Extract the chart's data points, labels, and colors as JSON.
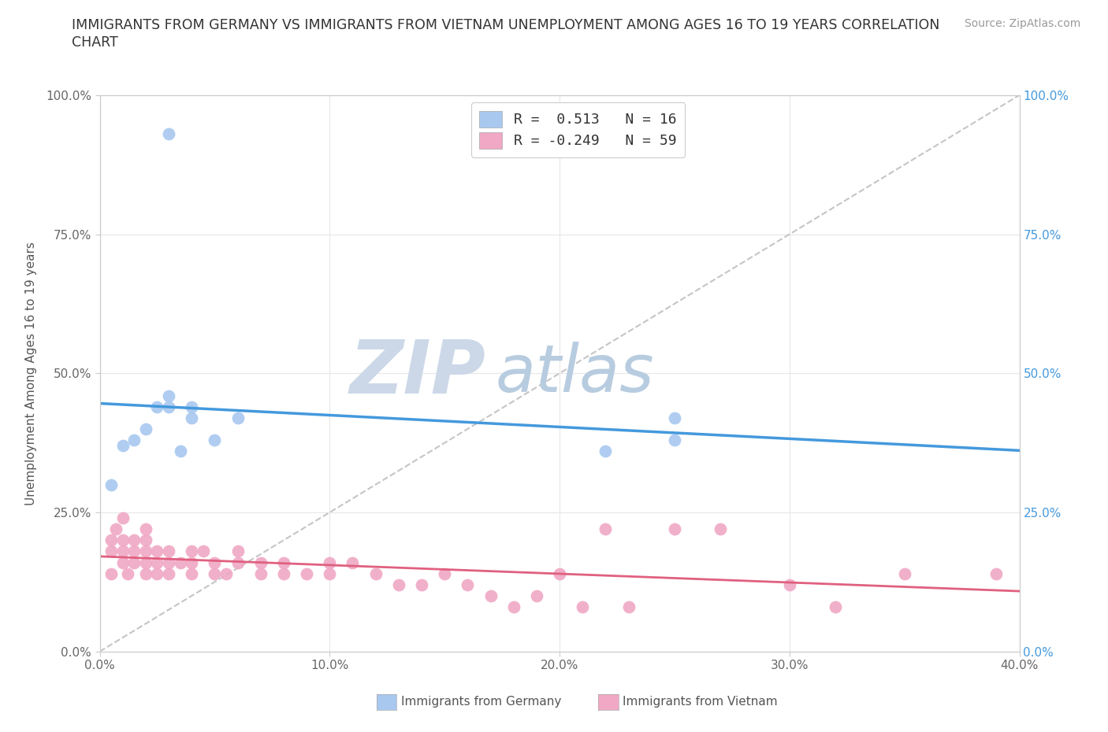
{
  "title_line1": "IMMIGRANTS FROM GERMANY VS IMMIGRANTS FROM VIETNAM UNEMPLOYMENT AMONG AGES 16 TO 19 YEARS CORRELATION",
  "title_line2": "CHART",
  "source": "Source: ZipAtlas.com",
  "ylabel": "Unemployment Among Ages 16 to 19 years",
  "xlabel_germany": "Immigrants from Germany",
  "xlabel_vietnam": "Immigrants from Vietnam",
  "xlim": [
    0.0,
    0.4
  ],
  "ylim": [
    0.0,
    1.0
  ],
  "xticks": [
    0.0,
    0.1,
    0.2,
    0.3,
    0.4
  ],
  "yticks": [
    0.0,
    0.25,
    0.5,
    0.75,
    1.0
  ],
  "ytick_labels_left": [
    "0.0%",
    "25.0%",
    "50.0%",
    "75.0%",
    "100.0%"
  ],
  "ytick_labels_right": [
    "0.0%",
    "25.0%",
    "50.0%",
    "75.0%",
    "100.0%"
  ],
  "xtick_labels": [
    "0.0%",
    "10.0%",
    "20.0%",
    "30.0%",
    "40.0%"
  ],
  "r_germany": 0.513,
  "n_germany": 16,
  "r_vietnam": -0.249,
  "n_vietnam": 59,
  "germany_scatter_color": "#a8c8f0",
  "vietnam_scatter_color": "#f0a8c4",
  "germany_line_color": "#4499dd",
  "vietnam_line_color": "#e06080",
  "ref_line_color": "#bbbbbb",
  "watermark_zip": "ZIP",
  "watermark_atlas": "atlas",
  "watermark_color_zip": "#c8d8ea",
  "watermark_color_atlas": "#b0c8e0",
  "background_color": "#ffffff",
  "grid_color": "#e8e8e8",
  "left_tick_color": "#666666",
  "right_tick_color": "#4499dd",
  "germany_x": [
    0.005,
    0.01,
    0.015,
    0.02,
    0.025,
    0.03,
    0.03,
    0.035,
    0.04,
    0.04,
    0.05,
    0.06,
    0.22,
    0.25,
    0.25,
    0.03
  ],
  "germany_y": [
    0.3,
    0.37,
    0.38,
    0.4,
    0.44,
    0.44,
    0.46,
    0.36,
    0.42,
    0.44,
    0.38,
    0.42,
    0.36,
    0.38,
    0.42,
    0.93
  ],
  "vietnam_x": [
    0.005,
    0.005,
    0.005,
    0.007,
    0.01,
    0.01,
    0.01,
    0.01,
    0.012,
    0.015,
    0.015,
    0.015,
    0.02,
    0.02,
    0.02,
    0.02,
    0.02,
    0.025,
    0.025,
    0.025,
    0.03,
    0.03,
    0.03,
    0.035,
    0.04,
    0.04,
    0.04,
    0.045,
    0.05,
    0.05,
    0.055,
    0.06,
    0.06,
    0.07,
    0.07,
    0.08,
    0.08,
    0.09,
    0.1,
    0.1,
    0.11,
    0.12,
    0.13,
    0.14,
    0.15,
    0.16,
    0.17,
    0.18,
    0.19,
    0.2,
    0.21,
    0.22,
    0.23,
    0.25,
    0.27,
    0.3,
    0.32,
    0.35,
    0.39
  ],
  "vietnam_y": [
    0.18,
    0.14,
    0.2,
    0.22,
    0.18,
    0.16,
    0.2,
    0.24,
    0.14,
    0.18,
    0.16,
    0.2,
    0.18,
    0.16,
    0.14,
    0.2,
    0.22,
    0.16,
    0.18,
    0.14,
    0.16,
    0.18,
    0.14,
    0.16,
    0.18,
    0.16,
    0.14,
    0.18,
    0.14,
    0.16,
    0.14,
    0.16,
    0.18,
    0.14,
    0.16,
    0.14,
    0.16,
    0.14,
    0.16,
    0.14,
    0.16,
    0.14,
    0.12,
    0.12,
    0.14,
    0.12,
    0.1,
    0.08,
    0.1,
    0.14,
    0.08,
    0.22,
    0.08,
    0.22,
    0.22,
    0.12,
    0.08,
    0.14,
    0.14
  ]
}
